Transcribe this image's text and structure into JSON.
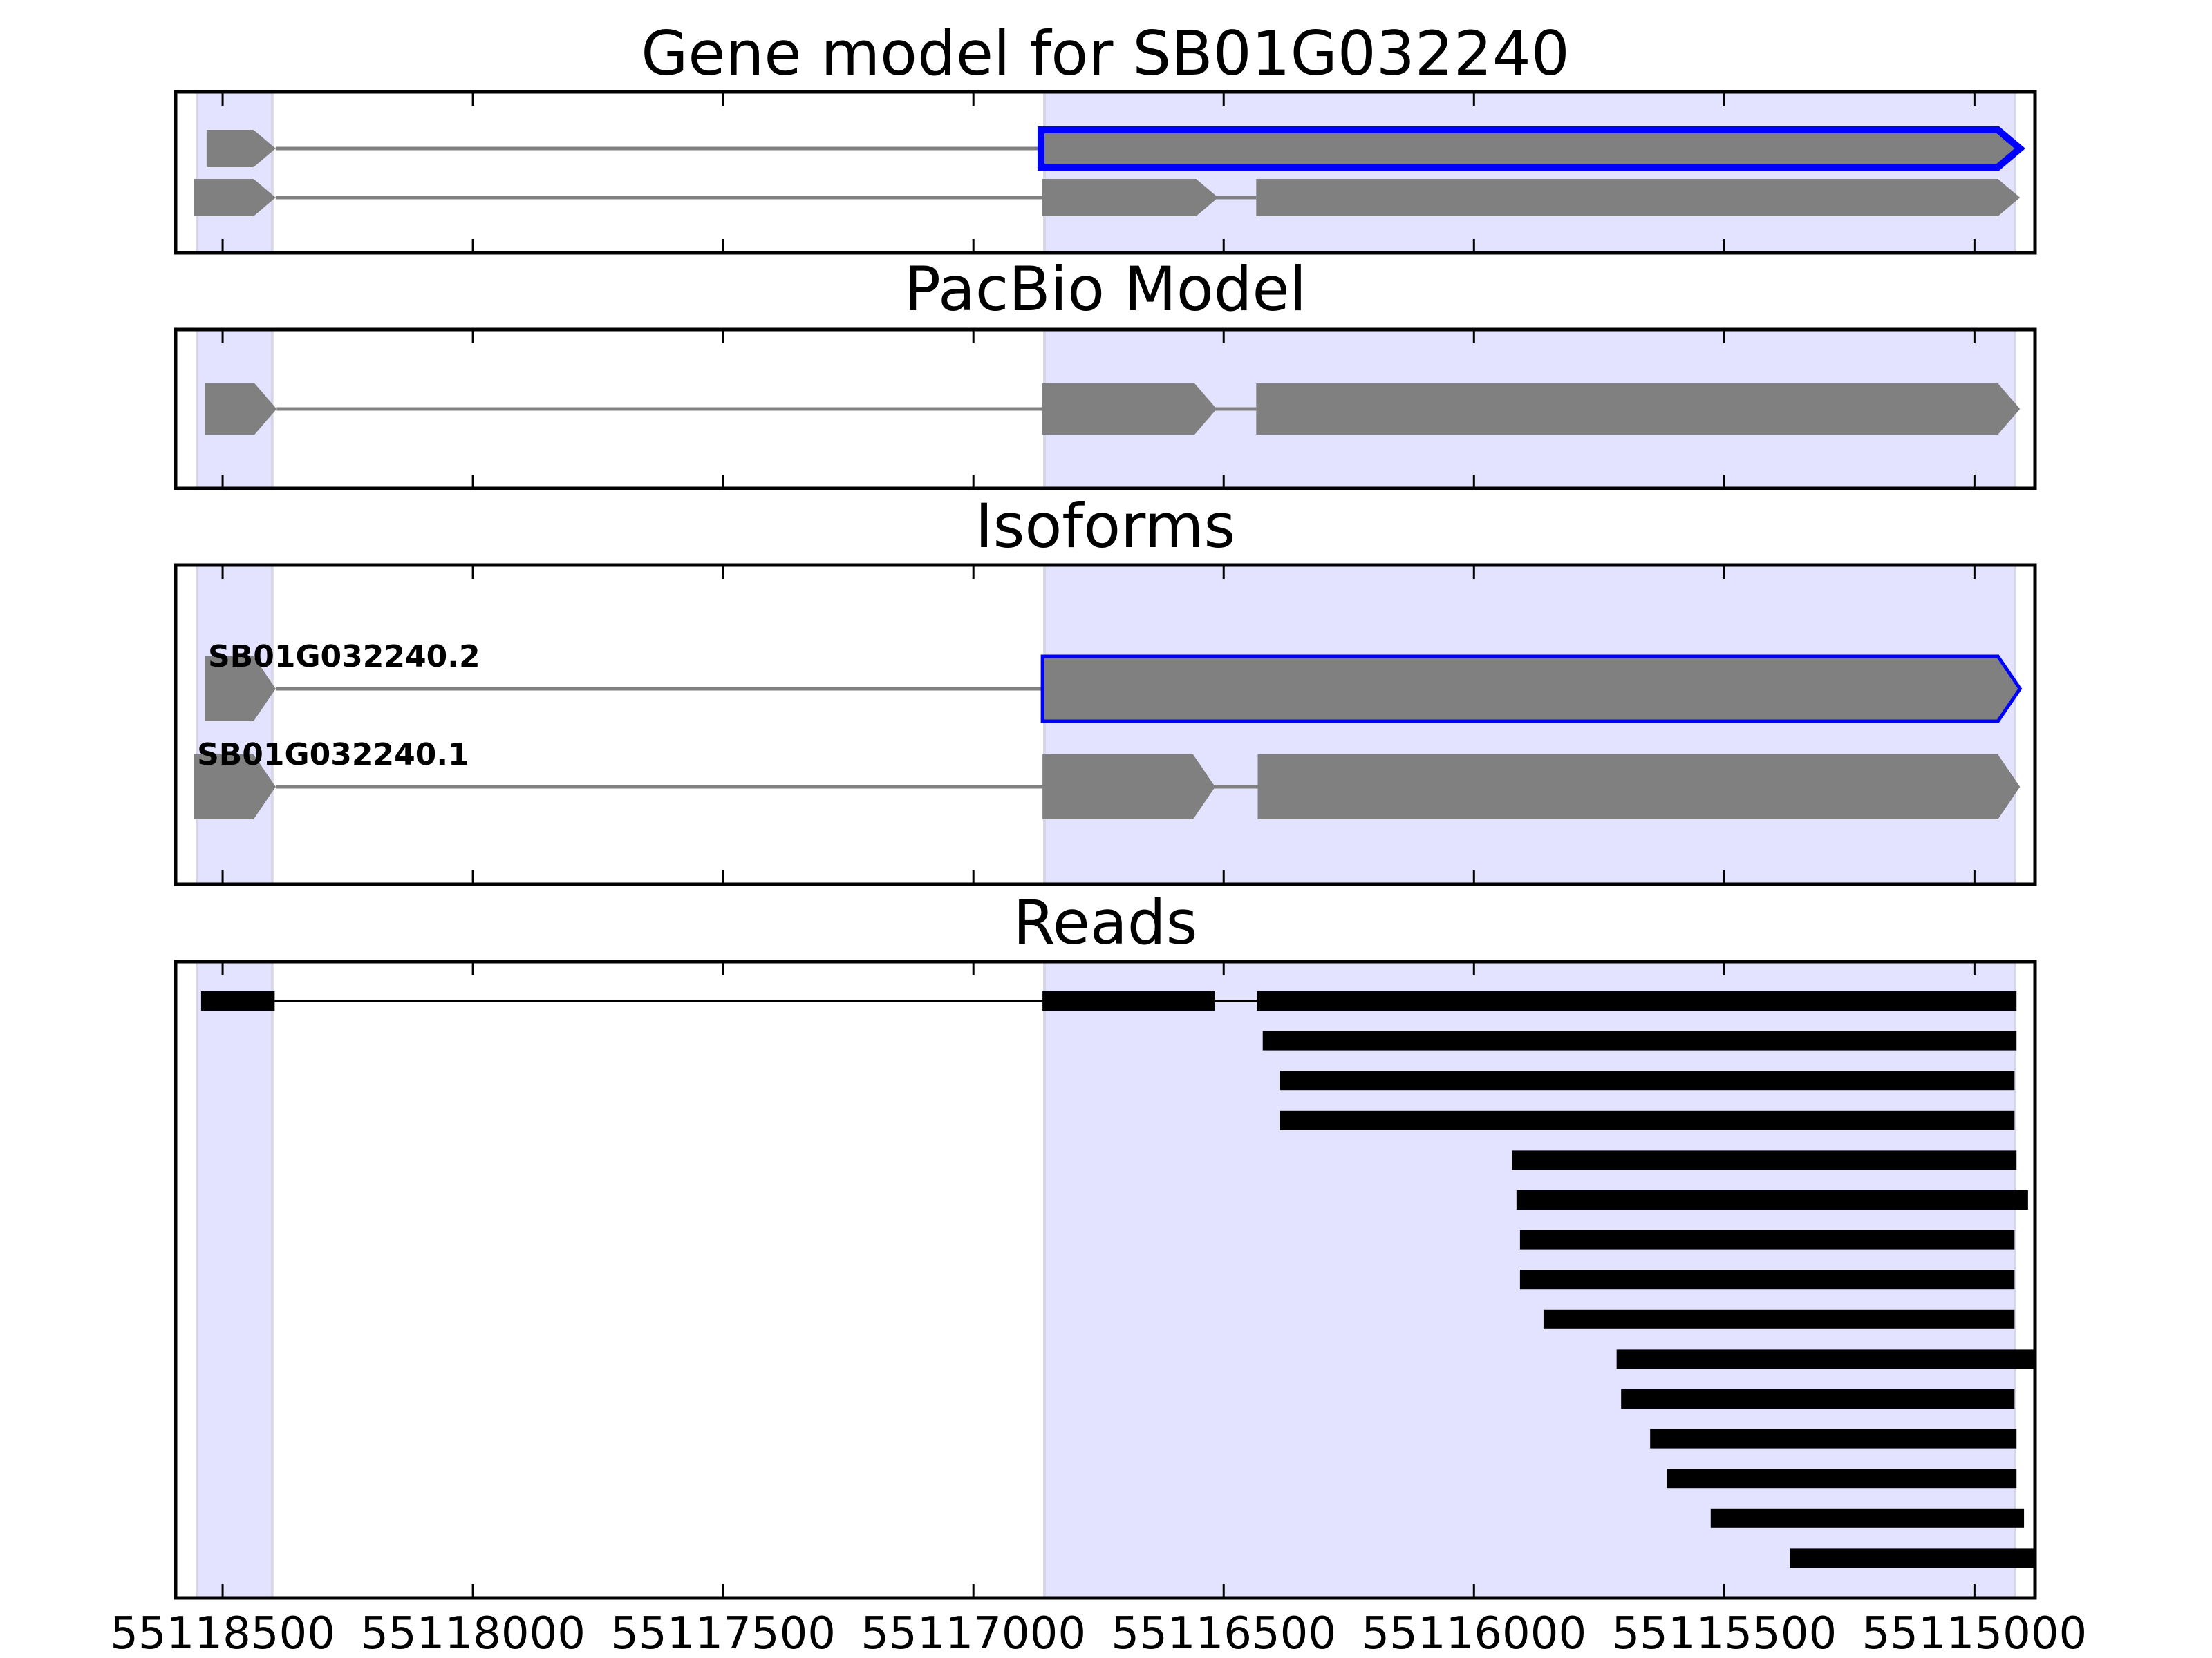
{
  "chart_data": {
    "type": "gene-track",
    "x_axis": {
      "reversed": true,
      "xlim": [
        55118594,
        55114879
      ],
      "ticks": [
        55118500,
        55118000,
        55117500,
        55117000,
        55116500,
        55116000,
        55115500,
        55115000
      ],
      "tick_labels": [
        "55118500",
        "55118000",
        "55117500",
        "55117000",
        "55116500",
        "55116000",
        "55115500",
        "55115000"
      ]
    },
    "shaded_regions": [
      [
        55118551,
        55118401
      ],
      [
        55116858,
        55114919
      ]
    ],
    "colors": {
      "exon": "#808080",
      "intron": "#808080",
      "highlight": "#0000ff",
      "shade": "#e3e3ff",
      "shade_edge": "#d6d6e8",
      "read": "#000000"
    },
    "panels": [
      {
        "id": "gene-model",
        "title": "Gene model for SB01G032240",
        "style": "model",
        "tracks": [
          {
            "highlight": true,
            "exons": [
              [
                55118532,
                55118394
              ],
              [
                55116865,
                55114909
              ]
            ]
          },
          {
            "highlight": false,
            "exons": [
              [
                55118558,
                55118394
              ],
              [
                55116863,
                55116511
              ],
              [
                55116435,
                55114909
              ]
            ]
          }
        ]
      },
      {
        "id": "pacbio-model",
        "title": "PacBio Model",
        "style": "model",
        "tracks": [
          {
            "highlight": false,
            "exons": [
              [
                55118536,
                55118392
              ],
              [
                55116863,
                55116514
              ],
              [
                55116435,
                55114909
              ]
            ]
          }
        ]
      },
      {
        "id": "isoforms",
        "title": "Isoforms",
        "style": "model",
        "tracks": [
          {
            "label": "SB01G032240.2",
            "highlight": true,
            "exons": [
              [
                55118536,
                55118394
              ],
              [
                55116862,
                55114909
              ]
            ]
          },
          {
            "label": "SB01G032240.1",
            "highlight": false,
            "exons": [
              [
                55118558,
                55118394
              ],
              [
                55116862,
                55116517
              ],
              [
                55116432,
                55114909
              ]
            ]
          }
        ]
      },
      {
        "id": "reads",
        "title": "Reads",
        "style": "reads",
        "tracks": [
          {
            "exons": [
              [
                55118543,
                55118396
              ],
              [
                55116862,
                55116518
              ],
              [
                55116434,
                55114916
              ]
            ]
          },
          {
            "exons": [
              [
                55116422,
                55114916
              ]
            ]
          },
          {
            "exons": [
              [
                55116388,
                55114920
              ]
            ]
          },
          {
            "exons": [
              [
                55116388,
                55114920
              ]
            ]
          },
          {
            "exons": [
              [
                55115924,
                55114916
              ]
            ]
          },
          {
            "exons": [
              [
                55115915,
                55114893
              ]
            ]
          },
          {
            "exons": [
              [
                55115908,
                55114920
              ]
            ]
          },
          {
            "exons": [
              [
                55115908,
                55114920
              ]
            ]
          },
          {
            "exons": [
              [
                55115861,
                55114920
              ]
            ]
          },
          {
            "exons": [
              [
                55115715,
                55114800
              ]
            ]
          },
          {
            "exons": [
              [
                55115706,
                55114920
              ]
            ]
          },
          {
            "exons": [
              [
                55115648,
                55114916
              ]
            ]
          },
          {
            "exons": [
              [
                55115615,
                55114916
              ]
            ]
          },
          {
            "exons": [
              [
                55115527,
                55114901
              ]
            ]
          },
          {
            "exons": [
              [
                55115369,
                55114800
              ]
            ]
          }
        ]
      }
    ]
  }
}
